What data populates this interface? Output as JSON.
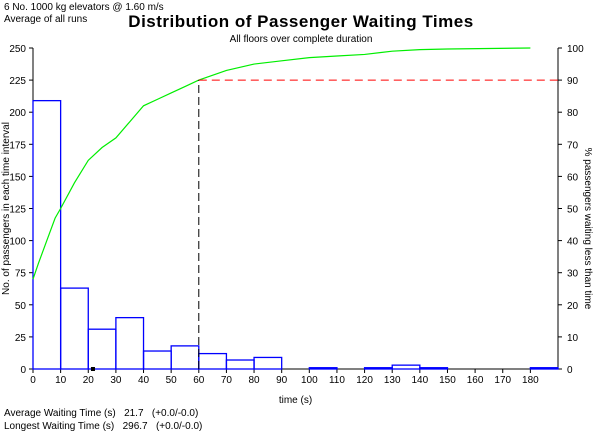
{
  "header": {
    "line1": "6 No. 1000 kg elevators @ 1.60 m/s",
    "line2": "Average of all runs"
  },
  "stats": {
    "avg_label": "Average Waiting Time (s)",
    "avg_value": "21.7",
    "avg_range": "(+0.0/-0.0)",
    "max_label": "Longest Waiting Time (s)",
    "max_value": "296.7",
    "max_range": "(+0.0/-0.0)"
  },
  "chart_data": {
    "type": "bar",
    "title": "Distribution of Passenger Waiting Times",
    "subtitle": "All floors over complete duration",
    "xlabel": "time (s)",
    "ylabel": "No. of passengers in each time interval",
    "y2label": "% passengers waiting less than time",
    "xlim": [
      0,
      190
    ],
    "ylim": [
      0,
      250
    ],
    "y2lim": [
      0,
      100
    ],
    "xticks": [
      0,
      10,
      20,
      30,
      40,
      50,
      60,
      70,
      80,
      90,
      100,
      110,
      120,
      130,
      140,
      150,
      160,
      170,
      180
    ],
    "yticks": [
      0,
      25,
      50,
      75,
      100,
      125,
      150,
      175,
      200,
      225,
      250
    ],
    "y2ticks": [
      0,
      10,
      20,
      30,
      40,
      50,
      60,
      70,
      80,
      90,
      100
    ],
    "colors": {
      "histogram": "#0000ff",
      "cumulative": "#00ee00",
      "percentile_line": "#ff0000",
      "marker": "#000000"
    },
    "histogram": {
      "bin_width": 10,
      "bin_starts": [
        0,
        10,
        20,
        30,
        40,
        50,
        60,
        70,
        80,
        90,
        100,
        110,
        120,
        130,
        140,
        150,
        160,
        170,
        180
      ],
      "values": [
        209,
        63,
        31,
        40,
        14,
        18,
        12,
        7,
        9,
        0,
        1,
        0,
        1,
        3,
        1,
        0,
        0,
        0,
        1
      ]
    },
    "cumulative": {
      "x": [
        0,
        2,
        5,
        8,
        10,
        15,
        20,
        25,
        30,
        35,
        40,
        45,
        50,
        55,
        60,
        70,
        80,
        90,
        100,
        110,
        120,
        130,
        140,
        150,
        180
      ],
      "y": [
        28,
        33,
        40,
        47,
        50,
        58,
        65,
        69,
        72,
        77,
        82,
        84,
        86,
        88,
        90,
        93,
        95,
        96,
        97,
        97.5,
        98,
        99,
        99.5,
        99.7,
        100
      ]
    },
    "percentile_marker": {
      "percent": 90,
      "time": 60
    },
    "average_marker": 21.7
  }
}
